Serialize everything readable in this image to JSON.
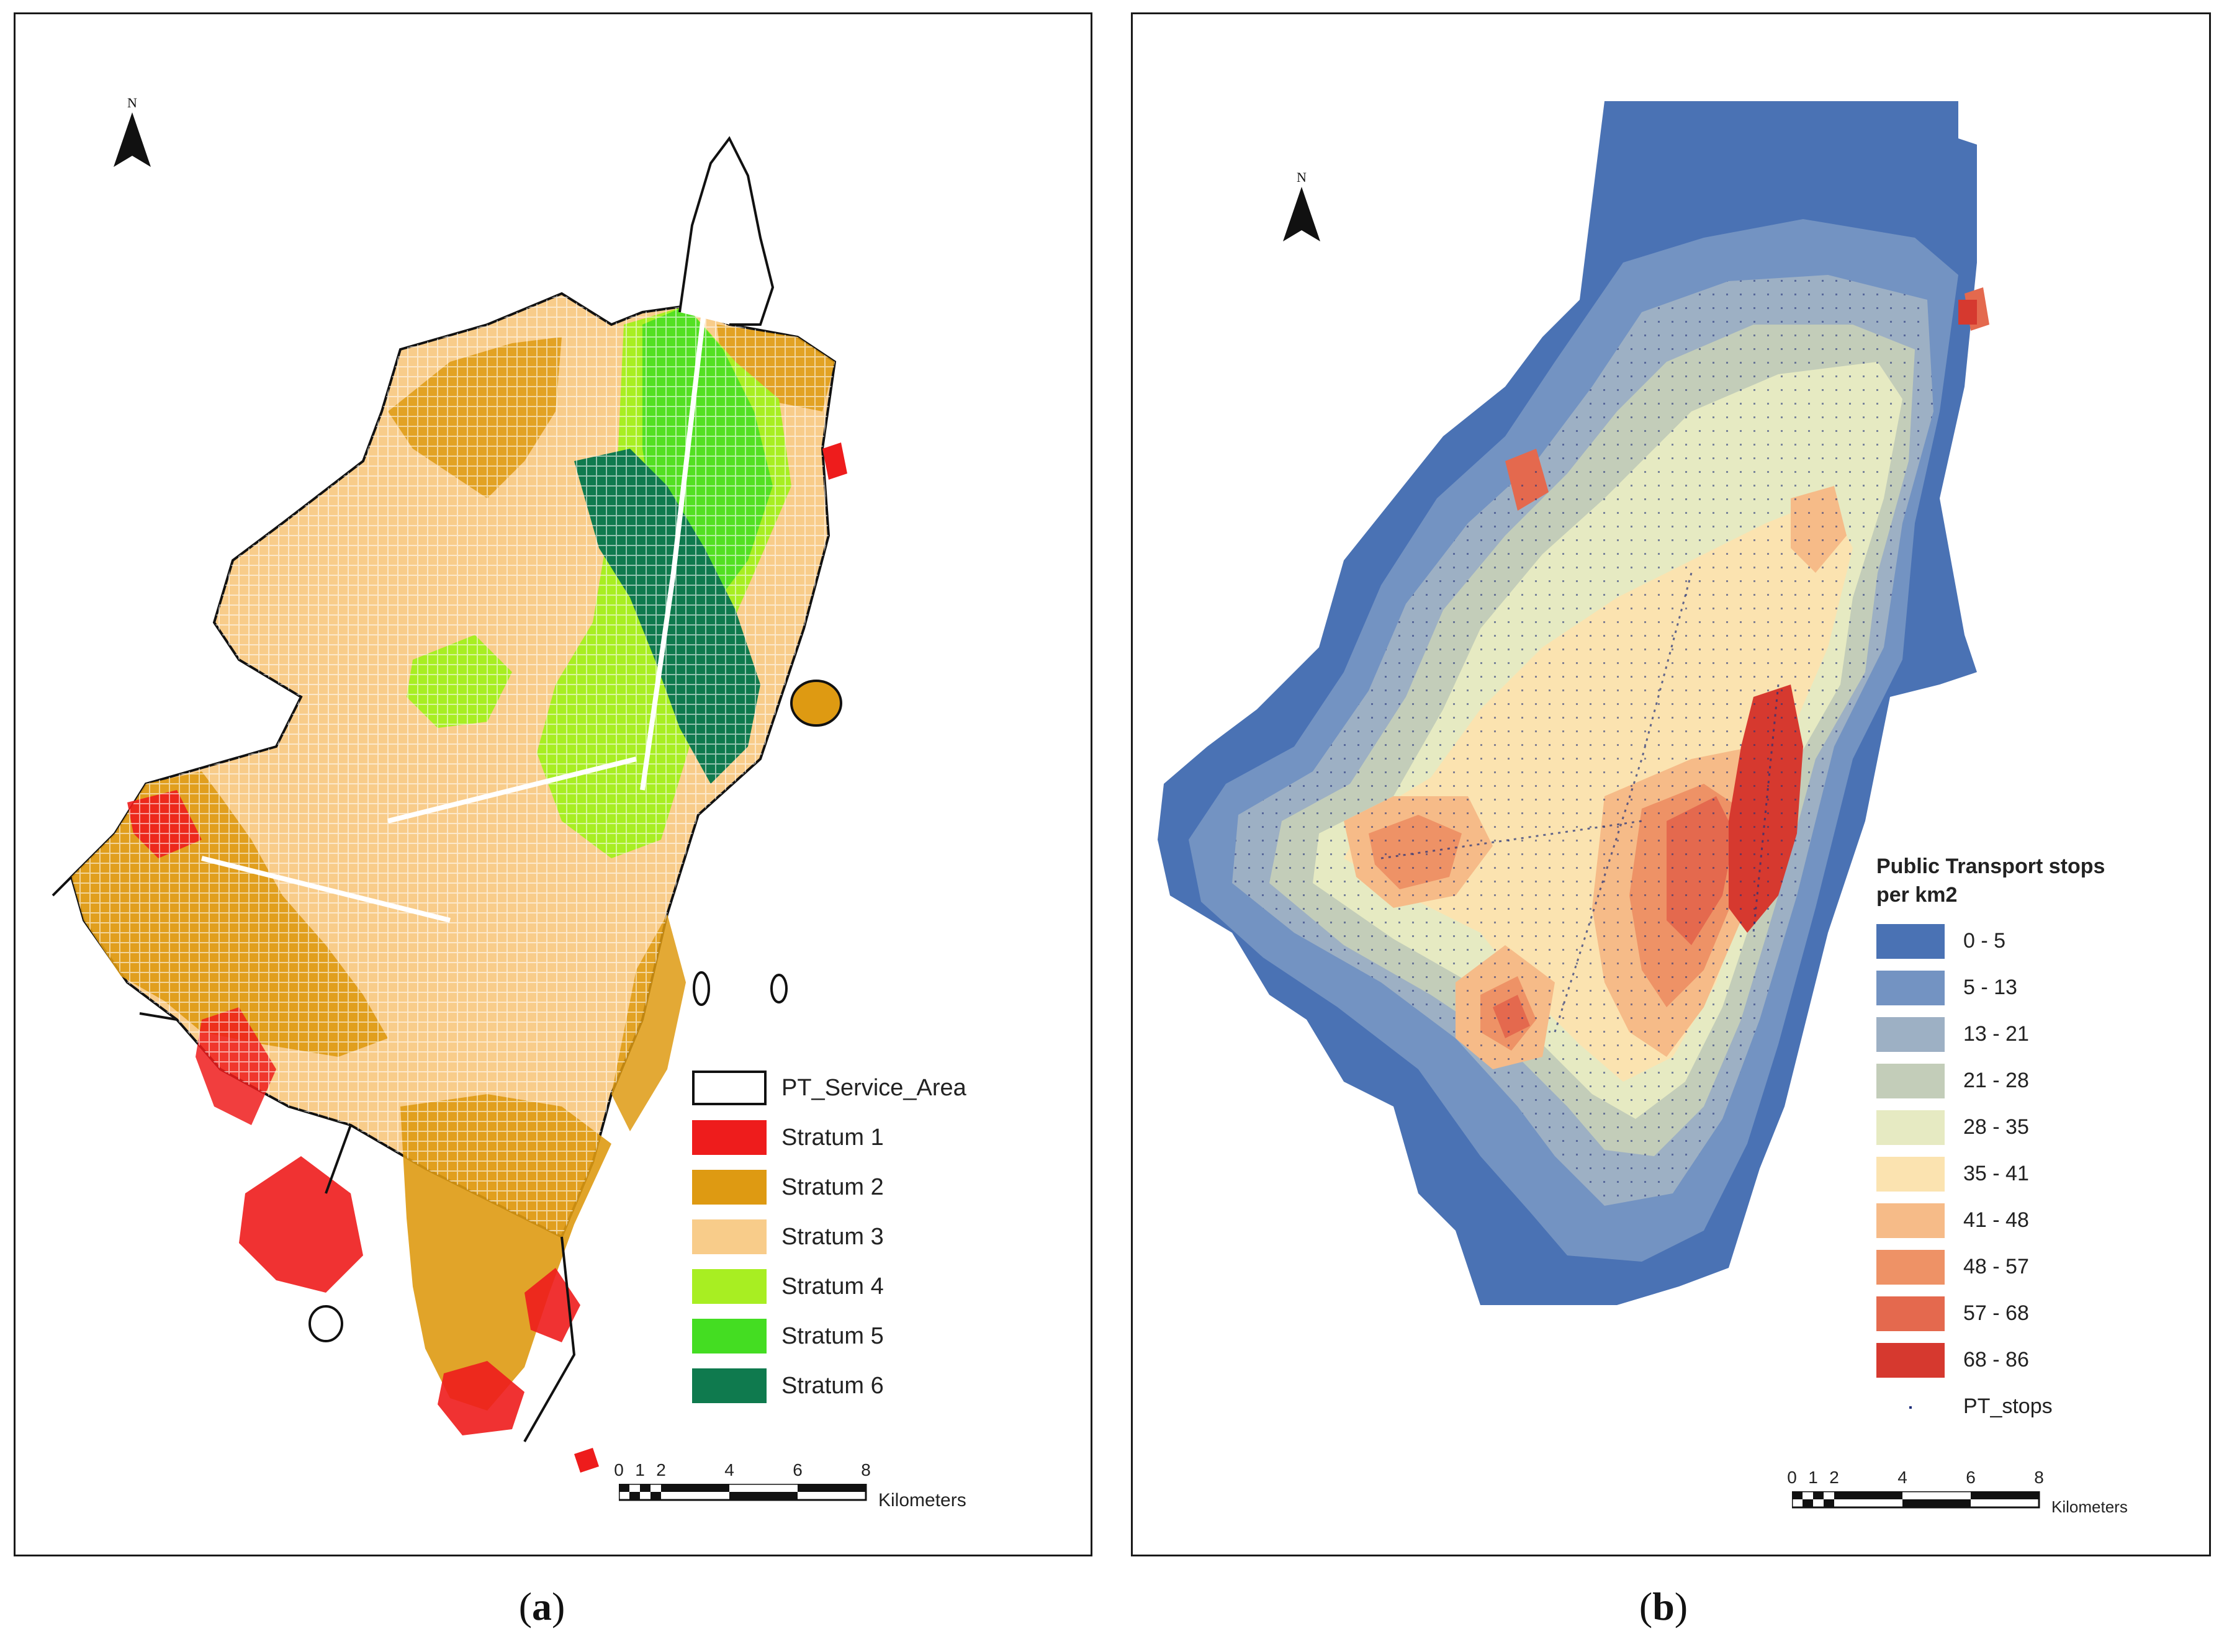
{
  "panel_a": {
    "caption_open": "(",
    "caption_letter": "a",
    "caption_close": ")",
    "north_label": "N",
    "legend": [
      {
        "label": "PT_Service_Area",
        "color": "#ffffff",
        "outline": "#111111"
      },
      {
        "label": "Stratum 1",
        "color": "#ee1c1c"
      },
      {
        "label": "Stratum 2",
        "color": "#de9a12"
      },
      {
        "label": "Stratum 3",
        "color": "#f8cc8a"
      },
      {
        "label": "Stratum 4",
        "color": "#a8ee22"
      },
      {
        "label": "Stratum 5",
        "color": "#44dd22"
      },
      {
        "label": "Stratum 6",
        "color": "#0f7a4e"
      }
    ],
    "scale": {
      "ticks": [
        "0",
        "1",
        "2",
        "4",
        "6",
        "8"
      ],
      "unit": "Kilometers"
    }
  },
  "panel_b": {
    "caption_open": "(",
    "caption_letter": "b",
    "caption_close": ")",
    "north_label": "N",
    "legend_title_line1": "Public Transport stops",
    "legend_title_line2": "per km2",
    "legend": [
      {
        "label": "0 - 5",
        "color": "#4a72b4"
      },
      {
        "label": "5 - 13",
        "color": "#7393c2"
      },
      {
        "label": "13 - 21",
        "color": "#9db0c4"
      },
      {
        "label": "21 - 28",
        "color": "#c3cdb9"
      },
      {
        "label": "28 - 35",
        "color": "#e6eac2"
      },
      {
        "label": "35 - 41",
        "color": "#fbe3b0"
      },
      {
        "label": "41 - 48",
        "color": "#f6bb88"
      },
      {
        "label": "48 - 57",
        "color": "#ee9266"
      },
      {
        "label": "57 - 68",
        "color": "#e4694e"
      },
      {
        "label": "68 - 86",
        "color": "#d6392f"
      }
    ],
    "stops_label": "PT_stops",
    "scale": {
      "ticks": [
        "0",
        "1",
        "2",
        "4",
        "6",
        "8"
      ],
      "unit": "Kilometers"
    }
  }
}
